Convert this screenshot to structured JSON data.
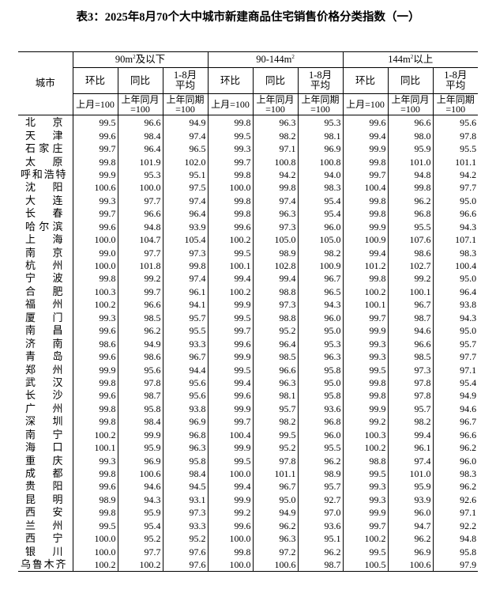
{
  "title": "表3：2025年8月70个大中城市新建商品住宅销售价格分类指数（一）",
  "header": {
    "city_label": "城市",
    "groups": [
      {
        "label": "90m",
        "sup": "2",
        "suffix": "及以下"
      },
      {
        "label": "90-144m",
        "sup": "2",
        "suffix": ""
      },
      {
        "label": "144m",
        "sup": "2",
        "suffix": "以上"
      }
    ],
    "subheaders": [
      "环比",
      "同比",
      "1-8月平均"
    ],
    "bases": [
      "上月=100",
      "上年同月=100",
      "上年同期=100"
    ]
  },
  "rows": [
    [
      "北京",
      "99.5",
      "96.6",
      "94.9",
      "99.8",
      "96.3",
      "95.3",
      "99.6",
      "96.6",
      "95.6"
    ],
    [
      "天津",
      "99.6",
      "98.4",
      "97.4",
      "99.5",
      "98.2",
      "98.1",
      "99.4",
      "98.0",
      "97.8"
    ],
    [
      "石家庄",
      "99.7",
      "96.4",
      "96.5",
      "99.3",
      "97.1",
      "96.9",
      "99.9",
      "95.9",
      "95.5"
    ],
    [
      "太原",
      "99.8",
      "101.9",
      "102.0",
      "99.7",
      "100.8",
      "100.8",
      "99.8",
      "101.0",
      "101.1"
    ],
    [
      "呼和浩特",
      "99.9",
      "95.3",
      "95.1",
      "99.8",
      "94.2",
      "94.0",
      "99.7",
      "94.8",
      "94.2"
    ],
    [
      "沈阳",
      "100.6",
      "100.0",
      "97.5",
      "100.0",
      "99.8",
      "98.3",
      "100.4",
      "99.8",
      "97.7"
    ],
    [
      "大连",
      "99.3",
      "97.7",
      "97.4",
      "99.8",
      "97.4",
      "95.4",
      "99.8",
      "96.2",
      "95.0"
    ],
    [
      "长春",
      "99.7",
      "96.6",
      "96.4",
      "99.8",
      "96.3",
      "95.4",
      "99.8",
      "96.8",
      "96.6"
    ],
    [
      "哈尔滨",
      "99.6",
      "94.8",
      "93.9",
      "99.6",
      "97.3",
      "96.0",
      "99.9",
      "95.5",
      "94.3"
    ],
    [
      "上海",
      "100.0",
      "104.7",
      "105.4",
      "100.2",
      "105.0",
      "105.0",
      "100.9",
      "107.6",
      "107.1"
    ],
    [
      "南京",
      "99.0",
      "97.7",
      "97.3",
      "99.5",
      "98.9",
      "98.2",
      "99.4",
      "98.6",
      "98.3"
    ],
    [
      "杭州",
      "100.0",
      "101.8",
      "99.8",
      "100.1",
      "102.8",
      "100.9",
      "101.2",
      "102.7",
      "100.4"
    ],
    [
      "宁波",
      "99.8",
      "99.2",
      "97.4",
      "99.4",
      "99.4",
      "96.7",
      "99.8",
      "99.2",
      "95.0"
    ],
    [
      "合肥",
      "100.3",
      "99.7",
      "96.1",
      "100.2",
      "98.8",
      "96.5",
      "100.2",
      "100.1",
      "96.4"
    ],
    [
      "福州",
      "100.2",
      "96.6",
      "94.1",
      "99.9",
      "97.3",
      "94.3",
      "100.1",
      "96.7",
      "93.8"
    ],
    [
      "厦门",
      "99.3",
      "98.5",
      "95.7",
      "99.5",
      "98.8",
      "96.0",
      "99.7",
      "98.7",
      "94.3"
    ],
    [
      "南昌",
      "99.6",
      "96.2",
      "95.5",
      "99.7",
      "95.2",
      "95.0",
      "99.9",
      "94.6",
      "95.0"
    ],
    [
      "济南",
      "98.6",
      "94.9",
      "93.3",
      "99.6",
      "96.4",
      "95.3",
      "99.3",
      "96.6",
      "95.7"
    ],
    [
      "青岛",
      "99.6",
      "98.6",
      "96.7",
      "99.9",
      "98.5",
      "96.3",
      "99.3",
      "98.5",
      "97.7"
    ],
    [
      "郑州",
      "99.9",
      "95.6",
      "94.4",
      "99.5",
      "96.6",
      "95.8",
      "99.5",
      "97.3",
      "97.1"
    ],
    [
      "武汉",
      "99.8",
      "97.8",
      "95.6",
      "99.4",
      "96.3",
      "95.0",
      "99.8",
      "97.8",
      "95.4"
    ],
    [
      "长沙",
      "99.6",
      "98.7",
      "95.6",
      "99.6",
      "98.1",
      "95.8",
      "99.8",
      "97.8",
      "94.9"
    ],
    [
      "广州",
      "99.8",
      "95.8",
      "93.8",
      "99.9",
      "95.7",
      "93.6",
      "99.9",
      "95.7",
      "94.6"
    ],
    [
      "深圳",
      "99.8",
      "98.4",
      "96.9",
      "99.7",
      "98.2",
      "96.8",
      "99.2",
      "98.2",
      "96.7"
    ],
    [
      "南宁",
      "100.2",
      "99.9",
      "96.8",
      "100.4",
      "99.5",
      "96.0",
      "100.3",
      "99.4",
      "96.6"
    ],
    [
      "海口",
      "100.1",
      "95.9",
      "96.3",
      "99.9",
      "95.2",
      "95.5",
      "100.2",
      "96.1",
      "96.2"
    ],
    [
      "重庆",
      "99.3",
      "96.9",
      "95.8",
      "99.5",
      "97.8",
      "96.2",
      "98.8",
      "97.4",
      "96.0"
    ],
    [
      "成都",
      "99.8",
      "100.6",
      "98.4",
      "100.0",
      "101.1",
      "98.9",
      "99.5",
      "101.0",
      "98.3"
    ],
    [
      "贵阳",
      "99.6",
      "94.6",
      "94.5",
      "99.4",
      "96.7",
      "95.7",
      "99.3",
      "95.9",
      "96.2"
    ],
    [
      "昆明",
      "98.9",
      "94.3",
      "93.1",
      "99.9",
      "95.0",
      "92.7",
      "99.3",
      "93.9",
      "92.6"
    ],
    [
      "西安",
      "99.8",
      "95.9",
      "97.3",
      "99.2",
      "94.9",
      "97.0",
      "99.9",
      "96.0",
      "97.1"
    ],
    [
      "兰州",
      "99.5",
      "95.4",
      "93.3",
      "99.6",
      "96.2",
      "93.6",
      "99.7",
      "94.7",
      "92.2"
    ],
    [
      "西宁",
      "100.0",
      "95.2",
      "95.2",
      "100.0",
      "96.3",
      "95.1",
      "100.2",
      "96.2",
      "94.8"
    ],
    [
      "银川",
      "100.0",
      "97.7",
      "97.6",
      "99.8",
      "97.2",
      "96.2",
      "99.5",
      "96.9",
      "95.8"
    ],
    [
      "乌鲁木齐",
      "100.2",
      "100.2",
      "97.6",
      "100.0",
      "100.6",
      "98.7",
      "100.5",
      "100.6",
      "97.9"
    ]
  ]
}
